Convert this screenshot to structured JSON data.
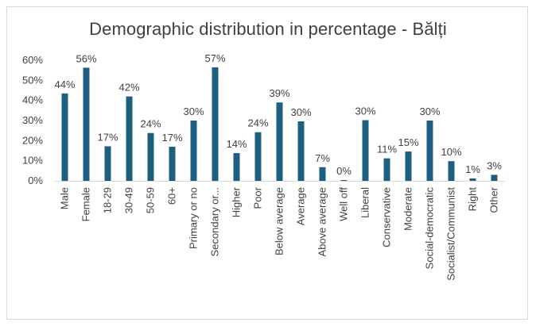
{
  "chart_data": {
    "type": "bar",
    "title": "Demographic distribution in percentage - Bălți",
    "xlabel": "",
    "ylabel": "",
    "ylim": [
      0,
      60
    ],
    "y_ticks": [
      "0%",
      "10%",
      "20%",
      "30%",
      "40%",
      "50%",
      "60%"
    ],
    "grid": false,
    "legend": "none",
    "bar_color": "#1c5f80",
    "categories": [
      "Male",
      "Female",
      "18-29",
      "30-49",
      "50-59",
      "60+",
      "Primary or no",
      "Secondary or...",
      "Higher",
      "Poor",
      "Below average",
      "Average",
      "Above average",
      "Well off",
      "Liberal",
      "Conservative",
      "Moderate",
      "Social-democratic",
      "Socialist/Communist",
      "Right",
      "Other"
    ],
    "values": [
      43.5,
      56.3,
      17.2,
      42,
      23.8,
      17,
      30,
      56.5,
      13.8,
      24.2,
      39,
      29.6,
      6.8,
      0.4,
      30.2,
      11.2,
      14.6,
      30,
      9.8,
      1.2,
      3
    ],
    "data_labels": [
      "44%",
      "56%",
      "17%",
      "42%",
      "24%",
      "17%",
      "30%",
      "57%",
      "14%",
      "24%",
      "39%",
      "30%",
      "7%",
      "0%",
      "30%",
      "11%",
      "15%",
      "30%",
      "10%",
      "1%",
      "3%"
    ]
  }
}
